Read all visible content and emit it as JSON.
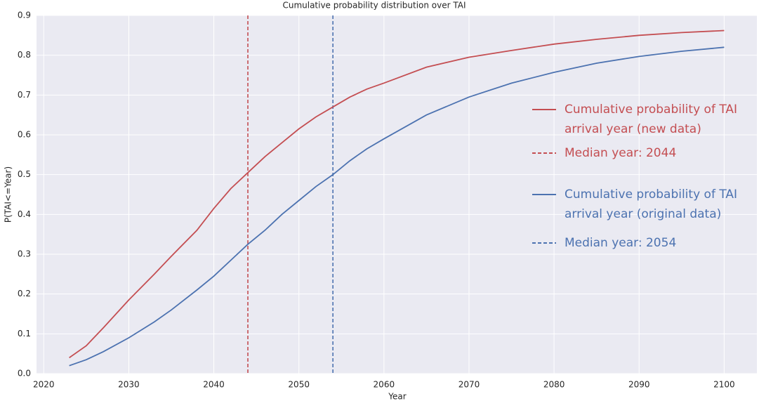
{
  "chart_data": {
    "type": "line",
    "title": "Cumulative probability distribution over TAI",
    "xlabel": "Year",
    "ylabel": "P(TAI<=Year)",
    "x": [
      2023,
      2025,
      2027,
      2030,
      2033,
      2035,
      2038,
      2040,
      2042,
      2044,
      2046,
      2048,
      2050,
      2052,
      2054,
      2056,
      2058,
      2060,
      2065,
      2070,
      2075,
      2080,
      2085,
      2090,
      2095,
      2100
    ],
    "series": [
      {
        "name": "Cumulative probability of TAI arrival year (new data)",
        "color": "#c44e52",
        "values": [
          0.04,
          0.07,
          0.115,
          0.185,
          0.25,
          0.295,
          0.36,
          0.415,
          0.465,
          0.505,
          0.545,
          0.58,
          0.615,
          0.645,
          0.67,
          0.695,
          0.715,
          0.73,
          0.77,
          0.795,
          0.812,
          0.828,
          0.84,
          0.85,
          0.857,
          0.862
        ]
      },
      {
        "name": "Cumulative probability of TAI arrival year (original data)",
        "color": "#4c72b0",
        "values": [
          0.02,
          0.035,
          0.055,
          0.09,
          0.13,
          0.16,
          0.21,
          0.245,
          0.285,
          0.325,
          0.36,
          0.4,
          0.435,
          0.47,
          0.5,
          0.535,
          0.565,
          0.59,
          0.65,
          0.695,
          0.73,
          0.757,
          0.78,
          0.797,
          0.81,
          0.82
        ]
      }
    ],
    "vlines": [
      {
        "name": "Median year: 2044",
        "color": "#c44e52",
        "x": 2044
      },
      {
        "name": "Median year: 2054",
        "color": "#4c72b0",
        "x": 2054
      }
    ],
    "xlim": [
      2019.15,
      2103.85
    ],
    "ylim": [
      0,
      0.9
    ],
    "xticks": [
      2020,
      2030,
      2040,
      2050,
      2060,
      2070,
      2080,
      2090,
      2100
    ],
    "yticks": [
      {
        "value": 0,
        "label": "0.0"
      },
      0.1,
      0.2,
      0.3,
      0.4,
      0.5,
      0.6,
      0.7,
      0.8,
      0.9
    ],
    "grid": true
  }
}
